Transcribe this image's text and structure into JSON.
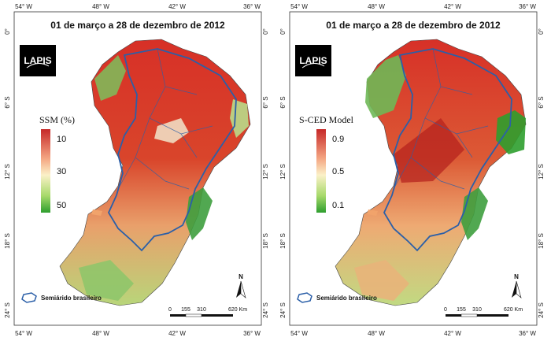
{
  "panels": [
    {
      "title": "01 de março a 28 de dezembro de 2012",
      "logo": "LAPIS",
      "legend_title": "SSM (%)",
      "legend_labels": [
        "10",
        "30",
        "50"
      ],
      "legend_colors": [
        "#c62828",
        "#f4a582",
        "#fbf1c8",
        "#a6d96a",
        "#2e9e2e"
      ],
      "semiarido_label": "Semiárido brasileiro",
      "scale_labels": [
        "0",
        "155",
        "310",
        "620 Km"
      ],
      "north_label": "N"
    },
    {
      "title": "01 de março a 28 de dezembro de 2012",
      "logo": "LAPIS",
      "legend_title": "S-CED Model",
      "legend_labels": [
        "0.9",
        "0.5",
        "0.1"
      ],
      "legend_colors": [
        "#c62828",
        "#f4a582",
        "#fbf1c8",
        "#a6d96a",
        "#2e9e2e"
      ],
      "semiarido_label": "Semiárido brasileiro",
      "scale_labels": [
        "0",
        "155",
        "310",
        "620 Km"
      ],
      "north_label": "N"
    }
  ],
  "axes": {
    "top_lon": [
      "54° W",
      "48° W",
      "42° W",
      "36° W"
    ],
    "bottom_lon": [
      "54° W",
      "48° W",
      "42° W",
      "36° W"
    ],
    "left_lat": [
      "0°",
      "6° S",
      "12° S",
      "18° S",
      "24° S"
    ],
    "right_lat": [
      "0°",
      "6° S",
      "12° S",
      "18° S",
      "24° S"
    ]
  },
  "colors": {
    "dry": "#c62828",
    "mid": "#f4a582",
    "wet": "#2e9e2e",
    "semiarido_border": "#2b5fa8"
  }
}
